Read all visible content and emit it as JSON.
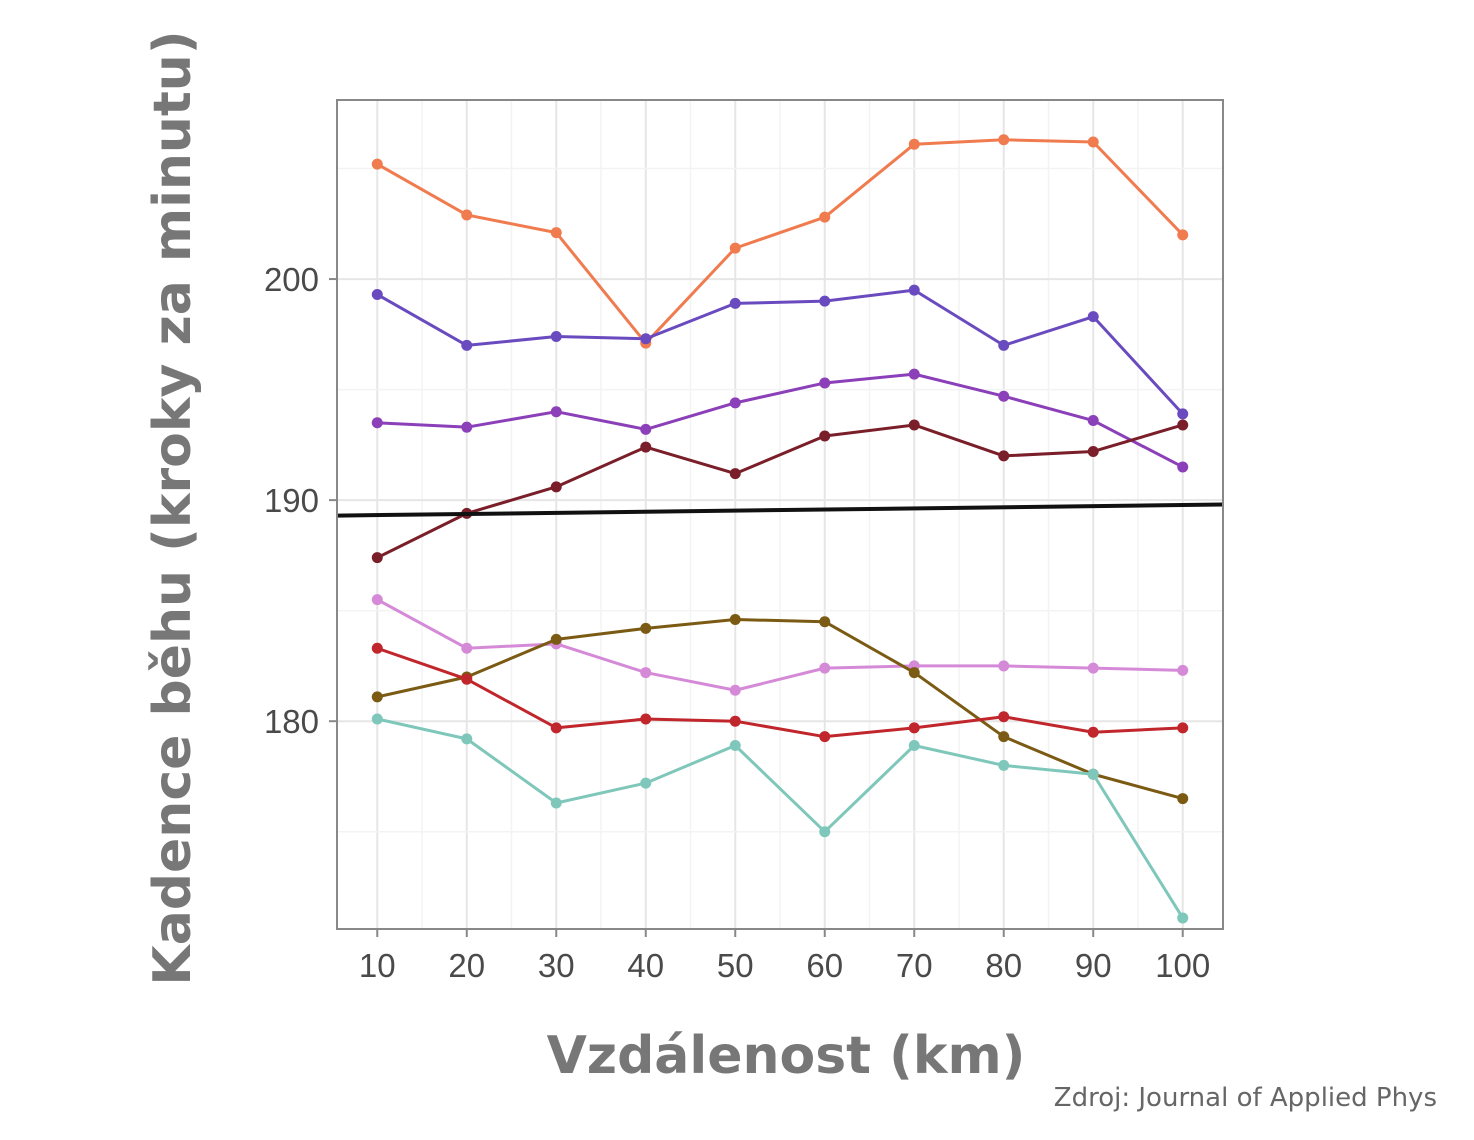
{
  "chart_data": {
    "type": "line",
    "title": "",
    "xlabel": "Vzdálenost (km)",
    "ylabel": "Kadence běhu (kroky za minutu)",
    "source": "Zdroj: Journal of Applied Phys",
    "x": [
      10,
      20,
      30,
      40,
      50,
      60,
      70,
      80,
      90,
      100
    ],
    "x_ticks": [
      "10",
      "20",
      "30",
      "40",
      "50",
      "60",
      "70",
      "80",
      "90",
      "100"
    ],
    "y_ticks": [
      "180",
      "190",
      "200"
    ],
    "y_tick_values": [
      180,
      190,
      200
    ],
    "xlim": [
      5.5,
      104.5
    ],
    "ylim": [
      170.6,
      208.1
    ],
    "grid": true,
    "legend": "none",
    "series": [
      {
        "name": "orange",
        "color": "#f07b4f",
        "values": [
          205.2,
          202.9,
          202.1,
          197.1,
          201.4,
          202.8,
          206.1,
          206.3,
          206.2,
          202.0
        ]
      },
      {
        "name": "blue-violet",
        "color": "#6a4bbf",
        "values": [
          199.3,
          197.0,
          197.4,
          197.3,
          198.9,
          199.0,
          199.5,
          197.0,
          198.3,
          193.9
        ]
      },
      {
        "name": "purple",
        "color": "#8b3fb8",
        "values": [
          193.5,
          193.3,
          194.0,
          193.2,
          194.4,
          195.3,
          195.7,
          194.7,
          193.6,
          191.5
        ]
      },
      {
        "name": "dark-red",
        "color": "#7a1f2a",
        "values": [
          187.4,
          189.4,
          190.6,
          192.4,
          191.2,
          192.9,
          193.4,
          192.0,
          192.2,
          193.4
        ]
      },
      {
        "name": "pink",
        "color": "#d58ad8",
        "values": [
          185.5,
          183.3,
          183.5,
          182.2,
          181.4,
          182.4,
          182.5,
          182.5,
          182.4,
          182.3
        ]
      },
      {
        "name": "olive-brown",
        "color": "#7b5a14",
        "values": [
          181.1,
          182.0,
          183.7,
          184.2,
          184.6,
          184.5,
          182.2,
          179.3,
          177.6,
          176.5
        ]
      },
      {
        "name": "red",
        "color": "#c0262b",
        "values": [
          183.3,
          181.9,
          179.7,
          180.1,
          180.0,
          179.3,
          179.7,
          180.2,
          179.5,
          179.7
        ]
      },
      {
        "name": "teal",
        "color": "#7ec7ba",
        "values": [
          180.1,
          179.2,
          176.3,
          177.2,
          178.9,
          175.0,
          178.9,
          178.0,
          177.6,
          171.1
        ]
      }
    ],
    "reference_line": {
      "name": "trend",
      "color": "#111111",
      "x": [
        5.5,
        104.5
      ],
      "values": [
        189.3,
        189.8
      ]
    }
  }
}
